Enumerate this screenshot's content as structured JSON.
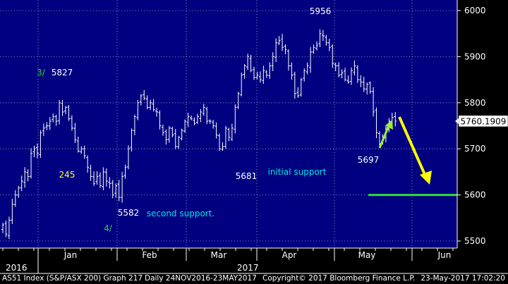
{
  "chart_data": {
    "type": "ohlc",
    "title": "",
    "ylim": [
      5480,
      6040
    ],
    "yticks": [
      5500,
      5600,
      5700,
      5800,
      5900,
      6000
    ],
    "y_axis_side": "right",
    "grid": true,
    "last_value_label": "5760.1909",
    "months": [
      "Jan",
      "Feb",
      "Mar",
      "Apr",
      "May",
      "Jun"
    ],
    "years": [
      "2016",
      "2017"
    ],
    "closes": [
      5535,
      5515,
      5545,
      5580,
      5600,
      5615,
      5630,
      5650,
      5640,
      5690,
      5700,
      5690,
      5735,
      5745,
      5750,
      5760,
      5770,
      5760,
      5800,
      5780,
      5790,
      5765,
      5745,
      5720,
      5695,
      5700,
      5685,
      5660,
      5640,
      5625,
      5640,
      5620,
      5650,
      5630,
      5625,
      5600,
      5620,
      5595,
      5640,
      5660,
      5700,
      5740,
      5770,
      5800,
      5815,
      5810,
      5790,
      5800,
      5785,
      5780,
      5750,
      5735,
      5720,
      5745,
      5730,
      5705,
      5725,
      5740,
      5760,
      5770,
      5765,
      5755,
      5770,
      5780,
      5790,
      5760,
      5760,
      5750,
      5730,
      5700,
      5705,
      5745,
      5725,
      5745,
      5790,
      5820,
      5860,
      5880,
      5900,
      5870,
      5855,
      5860,
      5850,
      5870,
      5860,
      5880,
      5900,
      5930,
      5935,
      5920,
      5915,
      5880,
      5860,
      5820,
      5815,
      5850,
      5870,
      5880,
      5910,
      5920,
      5925,
      5950,
      5945,
      5930,
      5920,
      5885,
      5880,
      5860,
      5865,
      5850,
      5845,
      5870,
      5880,
      5850,
      5845,
      5830,
      5840,
      5825,
      5780,
      5735,
      5710,
      5720,
      5745,
      5760,
      5768,
      5760
    ],
    "annotations": [
      {
        "text": "5956",
        "kind": "value"
      },
      {
        "text": "5827",
        "kind": "value"
      },
      {
        "text": "3/",
        "kind": "wave"
      },
      {
        "text": "245",
        "kind": "wave"
      },
      {
        "text": "5681",
        "kind": "value"
      },
      {
        "text": "initial support",
        "kind": "note"
      },
      {
        "text": "5582",
        "kind": "value"
      },
      {
        "text": "second support.",
        "kind": "note"
      },
      {
        "text": "4/",
        "kind": "wave"
      },
      {
        "text": "5697",
        "kind": "value"
      }
    ],
    "support_level": 5600,
    "colors": {
      "background": "#000080",
      "bars": "#ffffff",
      "grid": "#ffffff",
      "value_text": "#ffffff",
      "note_text": "#00e5e5",
      "wave_green": "#22dd22",
      "wave_yellow": "#ffff33",
      "support_line": "#33dd33",
      "arrow_yellow": "#ffff00",
      "arrow_green": "#99ee33"
    }
  },
  "footer": {
    "index_label": "AS51 Index (S&P/ASX 200) Graph 217",
    "period_label": "Daily 24NOV2016-23MAY2017",
    "copyright": "Copyright© 2017 Bloomberg Finance L.P.",
    "timestamp": "23-May-2017 17:02:20"
  }
}
